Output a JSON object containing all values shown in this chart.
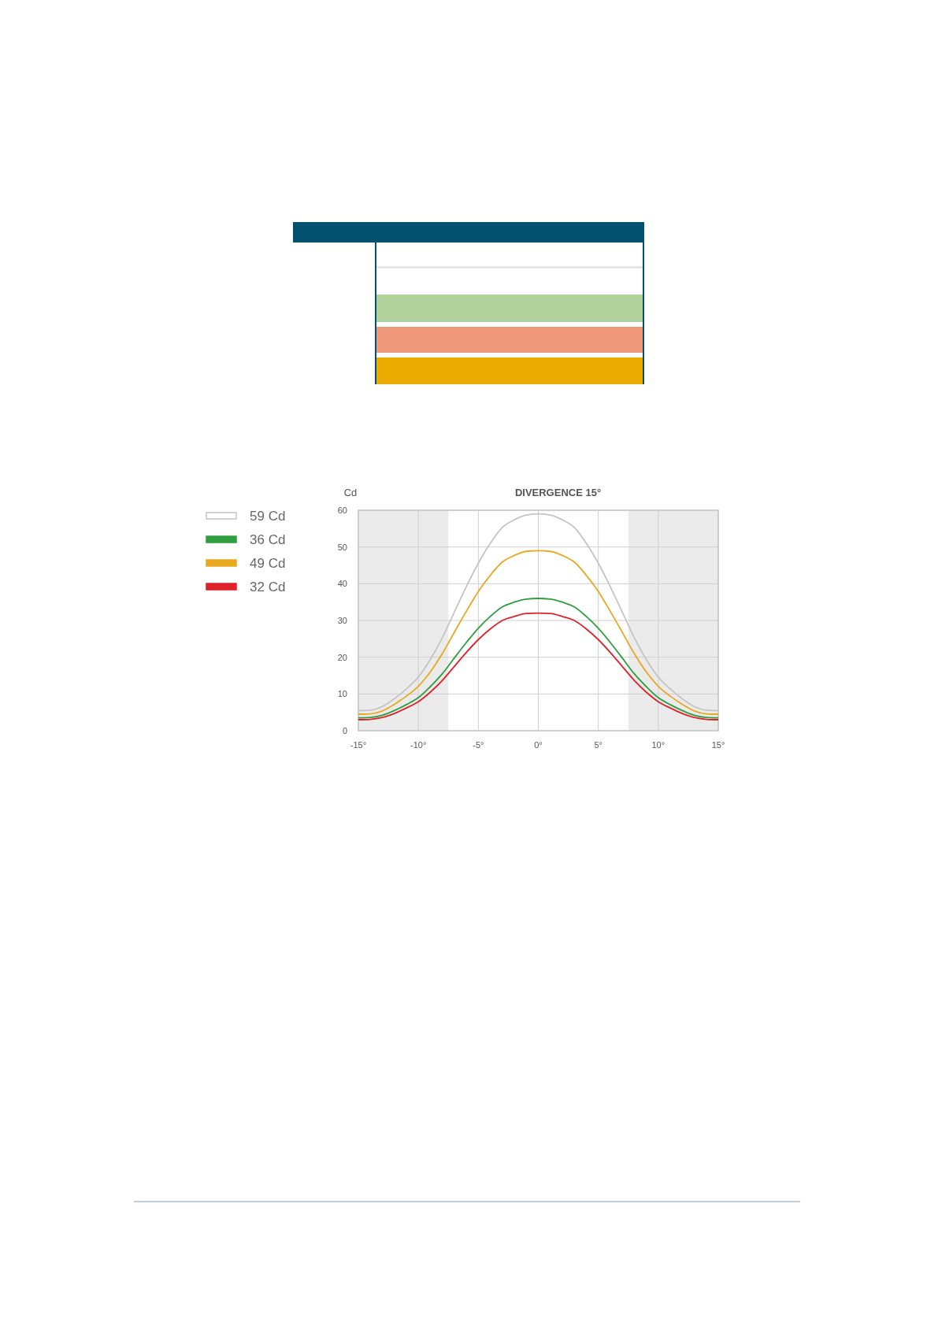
{
  "chart_data": {
    "type": "line",
    "title": "DIVERGENCE 15°",
    "ylabel": "Cd",
    "x": [
      -15,
      -14,
      -13,
      -12,
      -11,
      -10,
      -9,
      -8,
      -7,
      -6,
      -5,
      -4,
      -3,
      -2,
      -1,
      0,
      1,
      2,
      3,
      4,
      5,
      6,
      7,
      8,
      9,
      10,
      11,
      12,
      13,
      14,
      15
    ],
    "series": [
      {
        "name": "59 Cd",
        "color": "#c4c4c4",
        "values": [
          5.5,
          5.6,
          6.6,
          8.7,
          11.4,
          14.6,
          19.4,
          25.3,
          32.3,
          39.2,
          45.6,
          51,
          55.3,
          57.4,
          58.7,
          59,
          58.7,
          57.4,
          55.3,
          51,
          45.6,
          39.2,
          32.3,
          25.3,
          19.4,
          14.6,
          11.4,
          8.7,
          6.6,
          5.6,
          5.5
        ]
      },
      {
        "name": "36 Cd",
        "color": "#2e9e3e",
        "values": [
          3.5,
          3.6,
          4.2,
          5.5,
          7.1,
          9,
          12,
          15.5,
          19.8,
          24,
          27.9,
          31.1,
          33.7,
          35,
          35.8,
          36,
          35.8,
          35,
          33.7,
          31.1,
          27.9,
          24,
          19.8,
          15.5,
          12,
          9,
          7.1,
          5.5,
          4.2,
          3.6,
          3.5
        ]
      },
      {
        "name": "49 Cd",
        "color": "#e8a820",
        "values": [
          4.5,
          4.6,
          5.4,
          7.2,
          9.4,
          12.1,
          16,
          21,
          26.8,
          32.5,
          37.9,
          42.3,
          45.9,
          47.7,
          48.8,
          49,
          48.8,
          47.7,
          45.9,
          42.3,
          37.9,
          32.5,
          26.8,
          21,
          16,
          12.1,
          9.4,
          7.2,
          5.4,
          4.6,
          4.5
        ]
      },
      {
        "name": "32 Cd",
        "color": "#e0202a",
        "values": [
          3,
          3.1,
          3.6,
          4.7,
          6.2,
          7.9,
          10.5,
          13.7,
          17.5,
          21.3,
          24.8,
          27.7,
          30,
          31.1,
          31.9,
          32,
          31.9,
          31.1,
          30,
          27.7,
          24.8,
          21.3,
          17.5,
          13.7,
          10.5,
          7.9,
          6.2,
          4.7,
          3.6,
          3.1,
          3
        ]
      }
    ],
    "xlim": [
      -15,
      15
    ],
    "ylim": [
      0,
      60
    ],
    "xticks": [
      {
        "value": -15,
        "label": "-15°"
      },
      {
        "value": -10,
        "label": "-10°"
      },
      {
        "value": -5,
        "label": "-5°"
      },
      {
        "value": 0,
        "label": "0°"
      },
      {
        "value": 5,
        "label": "5°"
      },
      {
        "value": 10,
        "label": "10°"
      },
      {
        "value": 15,
        "label": "15°"
      }
    ],
    "yticks": [
      0,
      10,
      20,
      30,
      40,
      50,
      60
    ],
    "bands": [
      {
        "axis": "x",
        "from": -15,
        "to": -7.5,
        "color": "#ebebeb"
      },
      {
        "axis": "x",
        "from": 7.5,
        "to": 15,
        "color": "#ebebeb"
      }
    ],
    "grid": true,
    "legend": "left",
    "marker": "none",
    "line_style": "solid"
  }
}
